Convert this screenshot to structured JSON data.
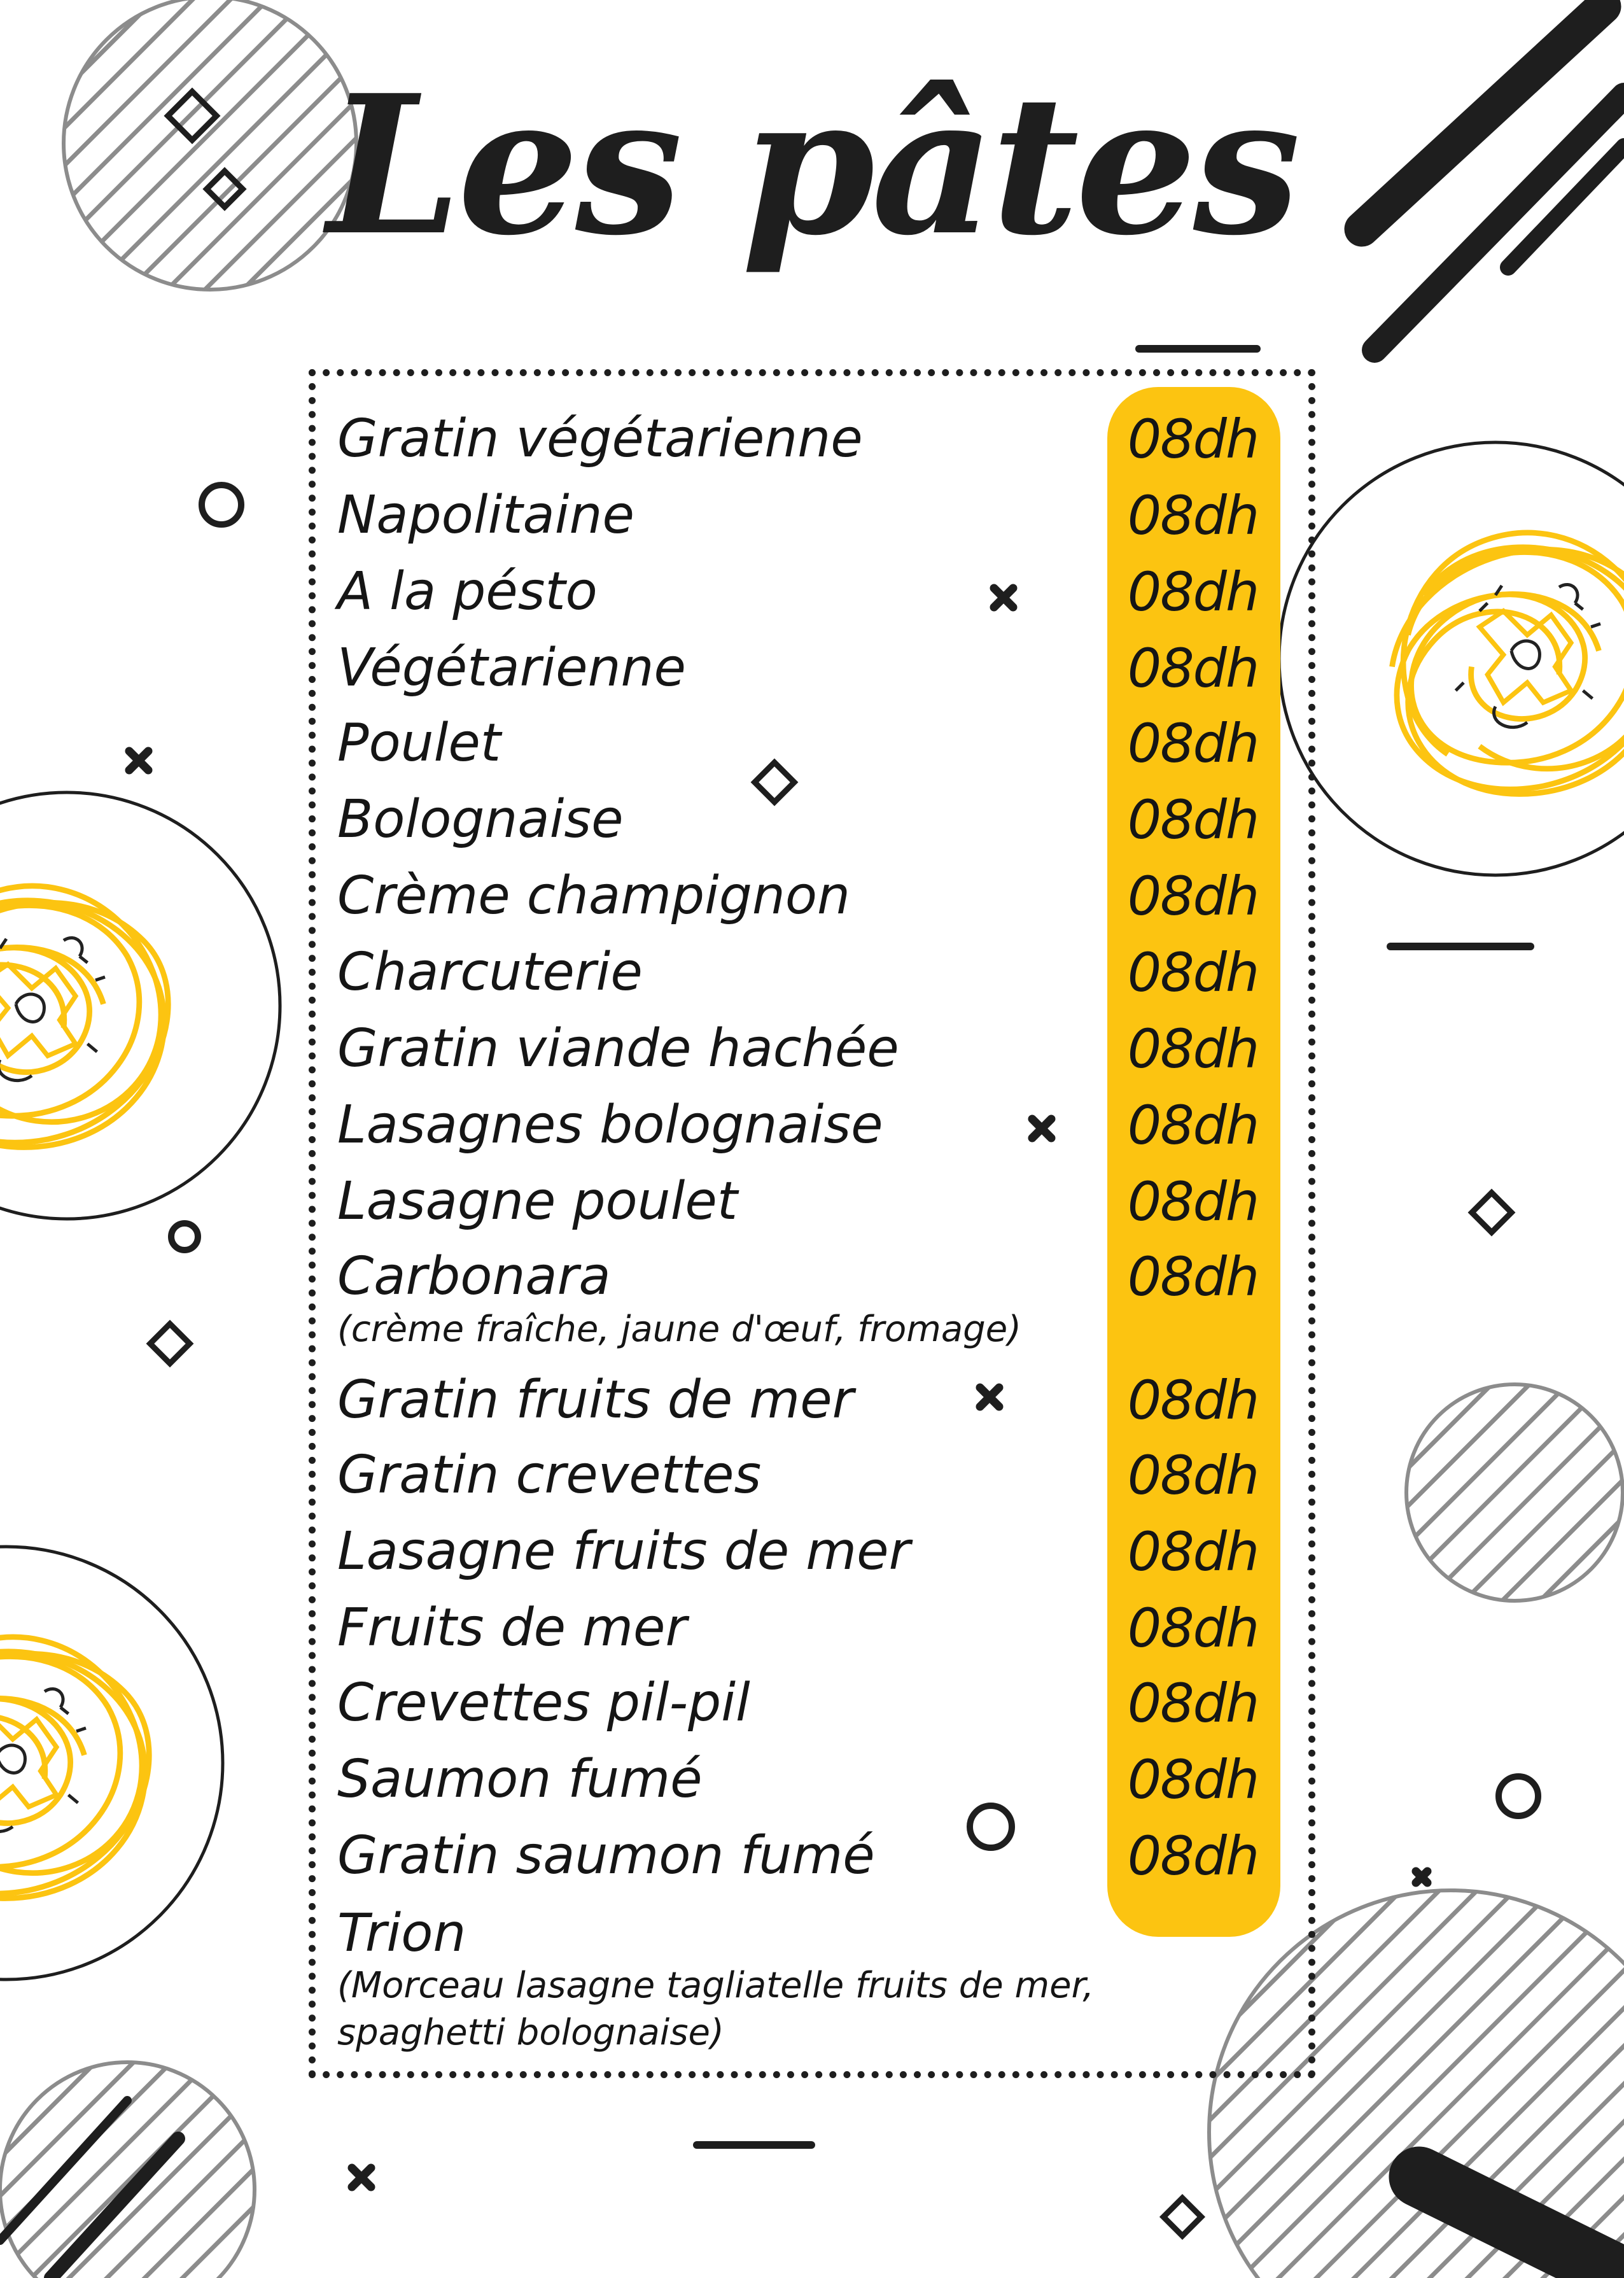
{
  "title": "Les pâtes",
  "colors": {
    "accent": "#fcc411",
    "ink": "#1e1e1e",
    "stripes": "#8c8c8c",
    "background": "#ffffff"
  },
  "items": [
    {
      "name": "Gratin végétarienne",
      "price": "08dh"
    },
    {
      "name": "Napolitaine",
      "price": "08dh"
    },
    {
      "name": "A la pésto",
      "price": "08dh"
    },
    {
      "name": "Végétarienne",
      "price": "08dh"
    },
    {
      "name": "Poulet",
      "price": "08dh"
    },
    {
      "name": "Bolognaise",
      "price": "08dh"
    },
    {
      "name": "Crème champignon",
      "price": "08dh"
    },
    {
      "name": "Charcuterie",
      "price": "08dh"
    },
    {
      "name": "Gratin viande hachée",
      "price": "08dh"
    },
    {
      "name": "Lasagnes bolognaise",
      "price": "08dh"
    },
    {
      "name": "Lasagne poulet",
      "price": "08dh"
    },
    {
      "name": "Carbonara",
      "description": "(crème fraîche, jaune d'œuf, fromage)",
      "price": "08dh"
    },
    {
      "name": "Gratin fruits de mer",
      "price": "08dh"
    },
    {
      "name": "Gratin crevettes",
      "price": "08dh"
    },
    {
      "name": "Lasagne fruits de mer",
      "price": "08dh"
    },
    {
      "name": "Fruits de mer",
      "price": "08dh"
    },
    {
      "name": "Crevettes pil-pil",
      "price": "08dh"
    },
    {
      "name": "Saumon fumé",
      "price": "08dh"
    },
    {
      "name": "Gratin saumon fumé",
      "price": "08dh"
    },
    {
      "name": "Trion",
      "description": "(Morceau lasagne tagliatelle fruits de mer,",
      "description2": "spaghetti bolognaise)"
    }
  ]
}
